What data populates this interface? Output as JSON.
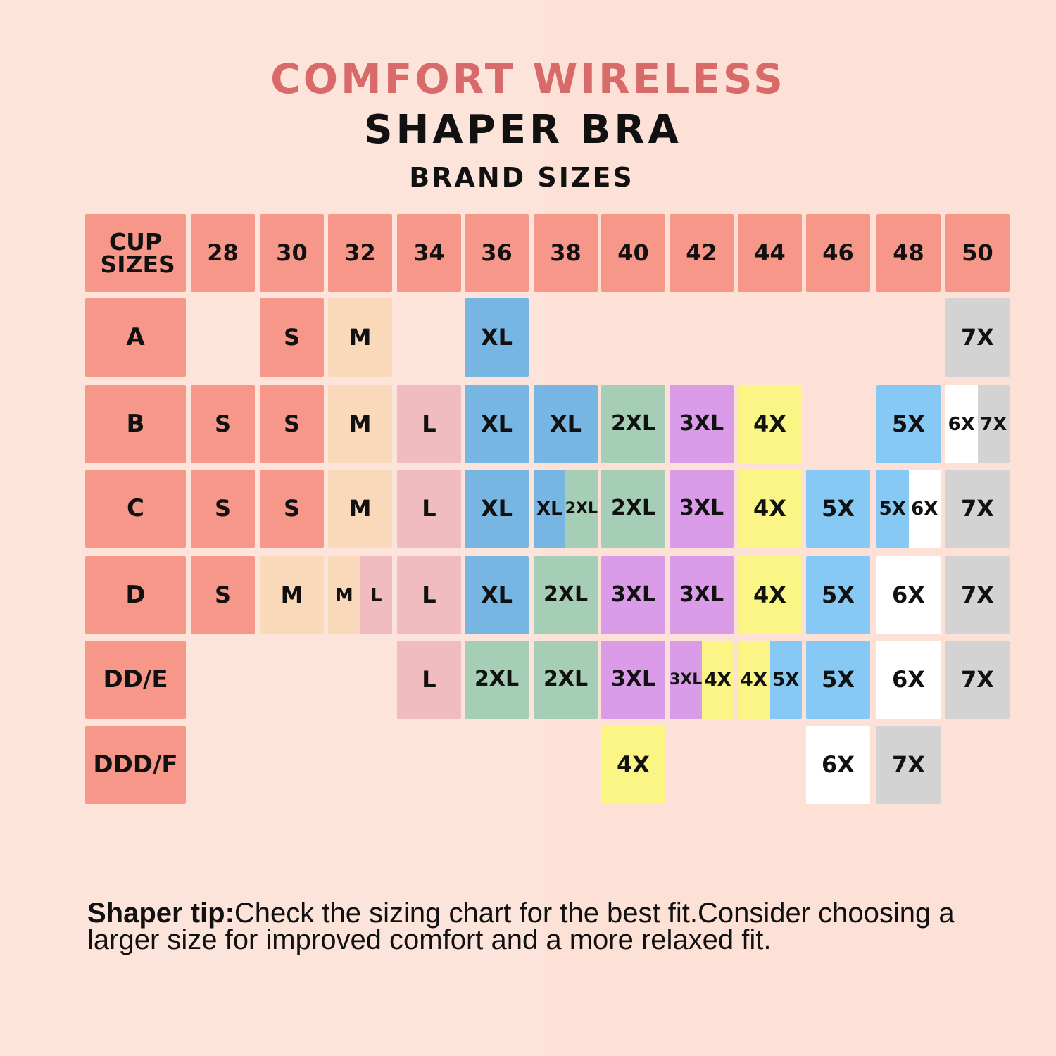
{
  "title": {
    "line1": "COMFORT WIRELESS",
    "line2": "SHAPER BRA",
    "line3": "BRAND SIZES"
  },
  "tip": {
    "label": "Shaper tip:",
    "text": "Check the sizing chart for the best fit.Consider choosing a larger size for improved comfort and a more relaxed fit."
  },
  "colors": {
    "header": "#f7978a",
    "S": "#f7978a",
    "M": "#fad9bb",
    "L": "#f1bcbf",
    "XL": "#77b5e3",
    "2XL": "#a6cdb6",
    "3XL": "#da9ce8",
    "4X": "#fbf585",
    "5X": "#85c9f4",
    "6X": "#ffffff",
    "7X": "#d3d3d3"
  },
  "chart_data": {
    "type": "table",
    "corner_label": "CUP SIZES",
    "band_sizes": [
      "28",
      "30",
      "32",
      "34",
      "36",
      "38",
      "40",
      "42",
      "44",
      "46",
      "48",
      "50"
    ],
    "cup_sizes": [
      "A",
      "B",
      "C",
      "D",
      "DD/E",
      "DDD/F"
    ],
    "rows": [
      [
        "",
        "S",
        "M",
        "",
        "XL",
        "",
        "",
        "",
        "",
        "",
        "",
        "7X"
      ],
      [
        "S",
        "S",
        "M",
        "L",
        "XL",
        "XL",
        "2XL",
        "3XL",
        "4X",
        "",
        "5X",
        "6X/7X"
      ],
      [
        "S",
        "S",
        "M",
        "L",
        "XL",
        "XL/2XL",
        "2XL",
        "3XL",
        "4X",
        "5X",
        "5X/6X",
        "7X"
      ],
      [
        "S",
        "M",
        "M/L",
        "L",
        "XL",
        "2XL",
        "3XL",
        "3XL",
        "4X",
        "5X",
        "6X",
        "7X"
      ],
      [
        "",
        "",
        "",
        "L",
        "2XL",
        "2XL",
        "3XL",
        "3XL/4X",
        "4X/5X",
        "5X",
        "6X",
        "7X"
      ],
      [
        "",
        "",
        "",
        "",
        "",
        "",
        "4X",
        "",
        "",
        "6X",
        "7X",
        ""
      ]
    ]
  }
}
